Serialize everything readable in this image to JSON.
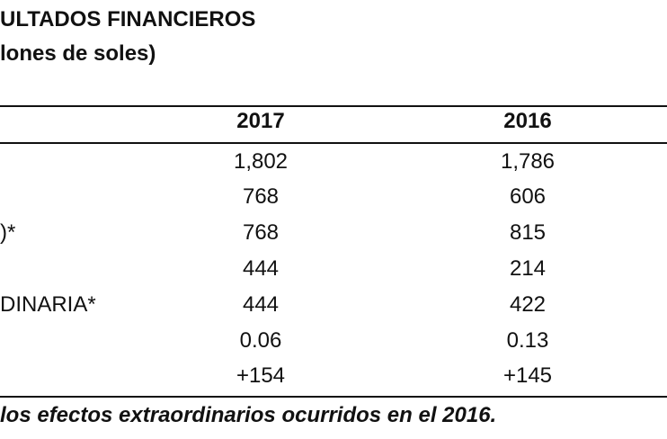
{
  "header": {
    "title": "ULTADOS FINANCIEROS",
    "subtitle": "lones de soles)"
  },
  "table": {
    "columns": [
      "2017",
      "2016"
    ],
    "rows": [
      {
        "label": "",
        "values": [
          "1,802",
          "1,786"
        ]
      },
      {
        "label": "",
        "values": [
          "768",
          "606"
        ]
      },
      {
        "label": ")*",
        "values": [
          "768",
          "815"
        ]
      },
      {
        "label": "",
        "values": [
          "444",
          "214"
        ]
      },
      {
        "label": "DINARIA*",
        "values": [
          "444",
          "422"
        ]
      },
      {
        "label": "",
        "values": [
          "0.06",
          "0.13"
        ]
      },
      {
        "label": "",
        "values": [
          "+154",
          "+145"
        ]
      }
    ]
  },
  "footnote": "los efectos extraordinarios ocurridos en el 2016."
}
